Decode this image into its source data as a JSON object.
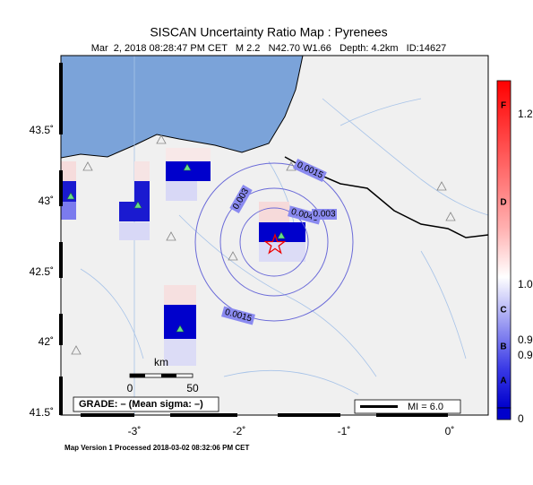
{
  "title": "SISCAN Uncertainty Ratio Map : Pyrenees",
  "subtitle": "Mar  2, 2018 08:28:47 PM CET   M 2.2   N42.70 W1.66   Depth: 4.2km   ID:14627",
  "lat_labels": [
    "43.5˚",
    "43˚",
    "42.5˚",
    "42˚",
    "41.5˚"
  ],
  "lon_labels": [
    "-3˚",
    "-2˚",
    "-1˚",
    "0˚"
  ],
  "contour_labels": [
    "0.0015",
    "0.003",
    "0.0045",
    "0.003",
    "0.0015"
  ],
  "colorbar": {
    "grades": [
      "F",
      "D",
      "C",
      "B",
      "A"
    ],
    "values": [
      "1.2",
      "1.0",
      "0.9",
      "0.9",
      "0"
    ]
  },
  "scale": {
    "unit": "km",
    "ticks": [
      "0",
      "50"
    ]
  },
  "grade": "GRADE: – (Mean sigma: –)",
  "mi": "MI = 6.0",
  "footer": "Map Version 1 Processed 2018-03-02 08:32:06 PM CET"
}
